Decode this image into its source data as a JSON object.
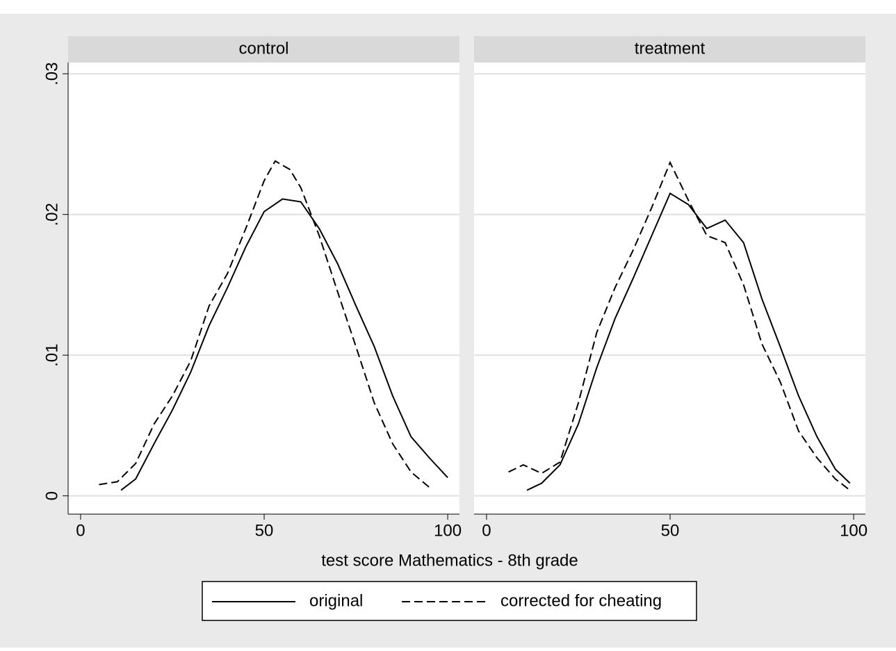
{
  "chart_data": {
    "type": "line",
    "xlabel": "test score Mathematics - 8th grade",
    "xlim": [
      -3.4,
      103.2
    ],
    "xticks": [
      0,
      50,
      100
    ],
    "ylim": [
      -0.0013,
      0.0308
    ],
    "yticks": [
      0,
      {
        "value": 0.01,
        "label": ".01"
      },
      {
        "value": 0.02,
        "label": ".02"
      },
      {
        "value": 0.03,
        "label": ".03"
      }
    ],
    "grid": true,
    "legend": "bottom",
    "series": [
      {
        "name": "original",
        "color": "#000000",
        "dash": "solid"
      },
      {
        "name": "corrected for cheating",
        "color": "#000000",
        "dash": "dashed"
      }
    ],
    "panels": [
      {
        "title": "control",
        "x": [
          [
            11,
            15,
            20,
            25,
            30,
            35,
            40,
            45,
            50,
            55,
            60,
            65,
            70,
            75,
            80,
            85,
            90,
            95,
            100
          ],
          [
            5,
            10,
            15,
            20,
            25,
            30,
            35,
            40,
            45,
            50,
            53,
            57,
            60,
            65,
            70,
            75,
            80,
            85,
            90,
            95
          ]
        ],
        "values": [
          [
            0.0004,
            0.0012,
            0.0037,
            0.0061,
            0.0088,
            0.0121,
            0.0148,
            0.0177,
            0.0202,
            0.0211,
            0.0209,
            0.019,
            0.0165,
            0.0135,
            0.0106,
            0.0071,
            0.0042,
            0.0027,
            0.0013
          ],
          [
            0.0008,
            0.001,
            0.0023,
            0.0051,
            0.0071,
            0.0096,
            0.0135,
            0.0158,
            0.019,
            0.0224,
            0.0238,
            0.0232,
            0.0219,
            0.0185,
            0.0145,
            0.0106,
            0.0066,
            0.0037,
            0.0017,
            0.0006
          ]
        ]
      },
      {
        "title": "treatment",
        "x": [
          [
            11,
            15,
            20,
            25,
            30,
            35,
            40,
            45,
            50,
            55,
            60,
            65,
            70,
            75,
            80,
            85,
            90,
            95,
            99
          ],
          [
            6,
            10,
            15,
            20,
            25,
            30,
            35,
            40,
            45,
            50,
            55,
            60,
            65,
            70,
            75,
            80,
            85,
            90,
            95,
            99
          ]
        ],
        "values": [
          [
            0.0004,
            0.0009,
            0.0022,
            0.0051,
            0.0091,
            0.0126,
            0.0155,
            0.0185,
            0.0215,
            0.0207,
            0.019,
            0.0196,
            0.018,
            0.014,
            0.0106,
            0.0071,
            0.0042,
            0.0019,
            0.0009
          ],
          [
            0.0017,
            0.0022,
            0.0016,
            0.0024,
            0.0066,
            0.0116,
            0.0148,
            0.0175,
            0.0205,
            0.0237,
            0.021,
            0.0185,
            0.018,
            0.015,
            0.0108,
            0.0081,
            0.0046,
            0.0027,
            0.0012,
            0.0004
          ]
        ]
      }
    ]
  }
}
